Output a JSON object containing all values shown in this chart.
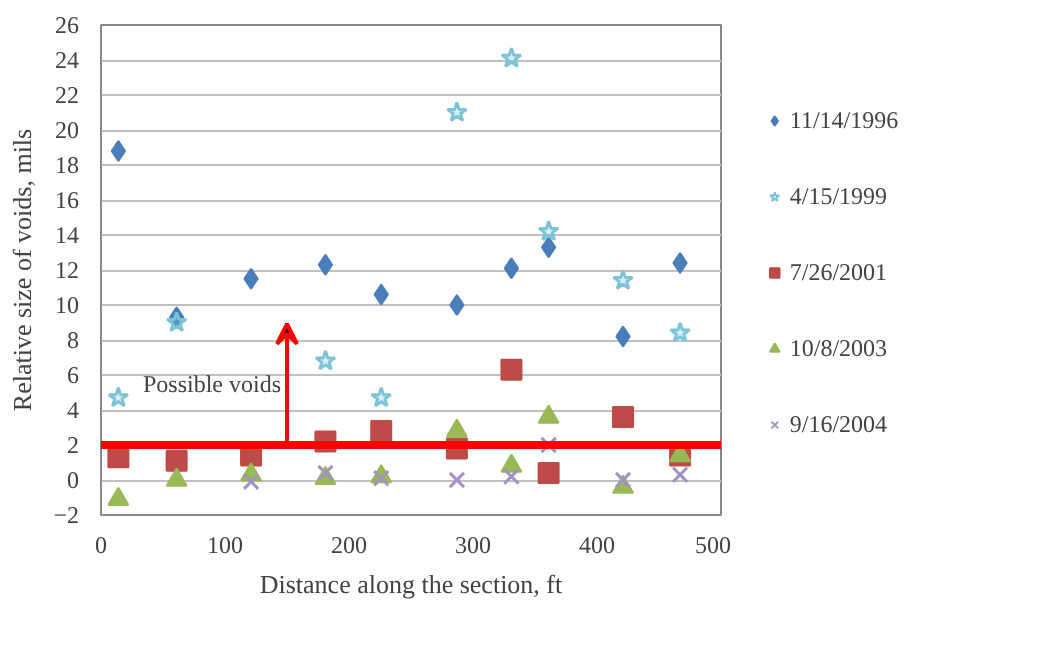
{
  "chart_data": {
    "type": "scatter",
    "xlabel": "Distance along the section, ft",
    "ylabel": "Relative size of voids, mils",
    "x": [
      14,
      61,
      121,
      181,
      226,
      287,
      331,
      361,
      421,
      467
    ],
    "series": [
      {
        "name": "11/14/1996",
        "color": "#4a7ebb",
        "marker": "diamond",
        "values": [
          18.8,
          9.3,
          11.5,
          12.3,
          10.6,
          10.0,
          12.1,
          13.3,
          8.2,
          12.4
        ]
      },
      {
        "name": "4/15/1999",
        "color": "#7cc4d6",
        "marker": "star",
        "values": [
          4.7,
          9.0,
          null,
          6.8,
          4.7,
          21.0,
          24.1,
          14.2,
          11.4,
          8.4
        ]
      },
      {
        "name": "7/26/2001",
        "color": "#be4b48",
        "marker": "square",
        "values": [
          1.3,
          1.1,
          1.4,
          2.2,
          2.8,
          1.8,
          6.3,
          0.4,
          3.6,
          1.4
        ]
      },
      {
        "name": "10/8/2003",
        "color": "#98b954",
        "marker": "triangle",
        "values": [
          -1.1,
          0.0,
          0.3,
          0.1,
          0.2,
          2.8,
          0.8,
          3.6,
          -0.4,
          1.4
        ]
      },
      {
        "name": "9/16/2004",
        "color": "#a393c4",
        "marker": "cross",
        "values": [
          null,
          null,
          -0.1,
          0.4,
          0.1,
          0.0,
          0.2,
          2.0,
          0.0,
          0.3
        ]
      }
    ],
    "xlim": [
      0,
      500
    ],
    "xticks": [
      0,
      100,
      200,
      300,
      400,
      500
    ],
    "ylim": [
      -2,
      26
    ],
    "yticks": [
      -2,
      0,
      2,
      4,
      6,
      8,
      10,
      12,
      14,
      16,
      18,
      20,
      22,
      24,
      26
    ],
    "ref_lines": [
      {
        "axis": "y",
        "value": 2,
        "color": "#ff0000"
      }
    ],
    "annotations": [
      "Possible voids"
    ],
    "grid": "y",
    "legend": "right"
  }
}
